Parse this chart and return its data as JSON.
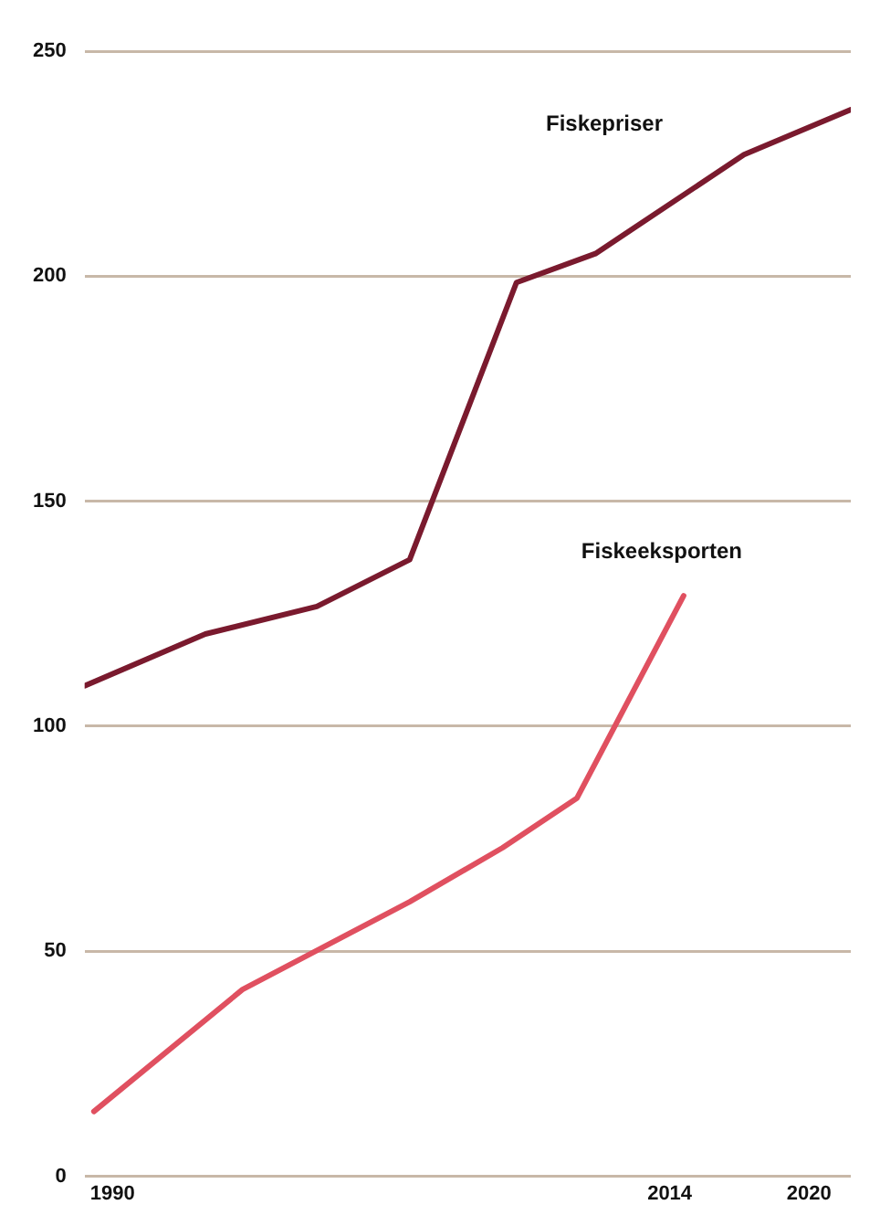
{
  "chart_data": {
    "type": "line",
    "xlim": [
      1988.8,
      2021.8
    ],
    "xticks": [
      1990,
      2014,
      2020
    ],
    "ylim": [
      0,
      250
    ],
    "yticks": [
      0,
      50,
      100,
      150,
      200,
      250
    ],
    "grid": "y",
    "legend": false,
    "marker": "none",
    "line_style": "solid",
    "series": [
      {
        "name": "Fiskepriser",
        "color": "#7a1a2e",
        "x": [
          1988.8,
          1994,
          1998.8,
          2002.8,
          2007.4,
          2010.8,
          2017.2,
          2021.8
        ],
        "values": [
          109,
          120.5,
          126.6,
          137,
          198.6,
          205,
          227,
          237
        ]
      },
      {
        "name": "Fiskeeksporten",
        "color": "#e05060",
        "x": [
          1989.2,
          1995.6,
          2002.8,
          2006.8,
          2010,
          2014.6
        ],
        "values": [
          14.4,
          41.5,
          61,
          73,
          84,
          129
        ]
      }
    ]
  }
}
